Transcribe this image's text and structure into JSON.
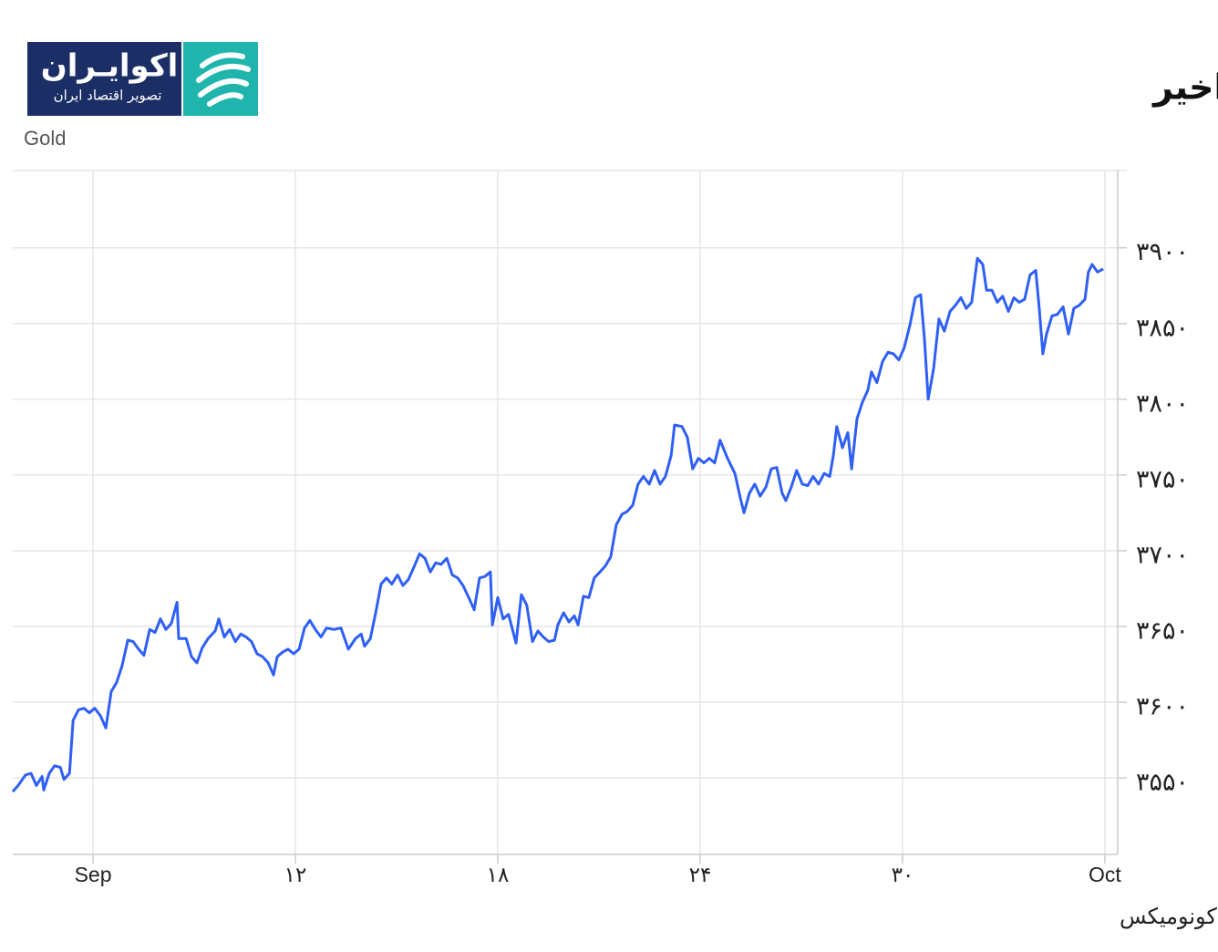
{
  "logo": {
    "name": "اکوایـران",
    "tagline": "تصویر اقتصاد ایران"
  },
  "chart_data": {
    "type": "line",
    "title": "روند طلای جهانی در یک ماه اخیر",
    "ylabel": "Gold",
    "source": "منبع: تریدینگ اکونومیکس",
    "grid": true,
    "xlim": [
      -2.38,
      30.38
    ],
    "xticks": [
      {
        "value": 0,
        "label": "Sep"
      },
      {
        "value": 6,
        "label": "۱۲"
      },
      {
        "value": 12,
        "label": "۱۸"
      },
      {
        "value": 18,
        "label": "۲۴"
      },
      {
        "value": 24,
        "label": "۳۰"
      },
      {
        "value": 30,
        "label": "Oct"
      }
    ],
    "ylim": [
      3499.5,
      3951
    ],
    "yticks": [
      {
        "value": 3550,
        "label": "۳۵۵۰"
      },
      {
        "value": 3600,
        "label": "۳۶۰۰"
      },
      {
        "value": 3650,
        "label": "۳۶۵۰"
      },
      {
        "value": 3700,
        "label": "۳۷۰۰"
      },
      {
        "value": 3750,
        "label": "۳۷۵۰"
      },
      {
        "value": 3800,
        "label": "۳۸۰۰"
      },
      {
        "value": 3850,
        "label": "۳۸۵۰"
      },
      {
        "value": 3900,
        "label": "۳۹۰۰"
      }
    ],
    "x": [
      -2.38,
      -2.22,
      -2.0,
      -1.84,
      -1.68,
      -1.51,
      -1.46,
      -1.3,
      -1.14,
      -0.97,
      -0.86,
      -0.7,
      -0.59,
      -0.43,
      -0.27,
      -0.11,
      0.05,
      0.22,
      0.38,
      0.54,
      0.7,
      0.86,
      1.03,
      1.19,
      1.35,
      1.51,
      1.68,
      1.84,
      2.0,
      2.16,
      2.32,
      2.49,
      2.54,
      2.76,
      2.92,
      3.08,
      3.24,
      3.41,
      3.62,
      3.73,
      3.89,
      4.05,
      4.22,
      4.38,
      4.54,
      4.7,
      4.86,
      5.03,
      5.19,
      5.35,
      5.46,
      5.62,
      5.78,
      5.95,
      6.11,
      6.27,
      6.43,
      6.59,
      6.76,
      6.92,
      7.14,
      7.35,
      7.57,
      7.78,
      7.95,
      8.05,
      8.22,
      8.38,
      8.54,
      8.7,
      8.86,
      9.03,
      9.19,
      9.35,
      9.51,
      9.68,
      9.84,
      10.0,
      10.16,
      10.32,
      10.49,
      10.65,
      10.81,
      10.97,
      11.14,
      11.3,
      11.46,
      11.62,
      11.78,
      11.84,
      12.0,
      12.16,
      12.32,
      12.54,
      12.7,
      12.86,
      13.03,
      13.19,
      13.35,
      13.51,
      13.68,
      13.78,
      13.95,
      14.11,
      14.27,
      14.38,
      14.54,
      14.7,
      14.86,
      15.03,
      15.19,
      15.35,
      15.51,
      15.68,
      15.84,
      16.0,
      16.16,
      16.32,
      16.49,
      16.65,
      16.81,
      16.97,
      17.14,
      17.24,
      17.46,
      17.62,
      17.78,
      17.95,
      18.11,
      18.27,
      18.43,
      18.59,
      18.81,
      19.03,
      19.19,
      19.3,
      19.46,
      19.62,
      19.78,
      19.95,
      20.11,
      20.27,
      20.43,
      20.54,
      20.7,
      20.86,
      21.03,
      21.19,
      21.35,
      21.51,
      21.68,
      21.84,
      21.95,
      22.05,
      22.22,
      22.38,
      22.49,
      22.65,
      22.81,
      22.97,
      23.08,
      23.24,
      23.41,
      23.57,
      23.73,
      23.89,
      24.05,
      24.22,
      24.38,
      24.54,
      24.65,
      24.76,
      24.92,
      25.08,
      25.24,
      25.41,
      25.57,
      25.73,
      25.89,
      26.05,
      26.22,
      26.38,
      26.49,
      26.65,
      26.81,
      26.97,
      27.14,
      27.3,
      27.46,
      27.62,
      27.78,
      27.95,
      28.05,
      28.16,
      28.27,
      28.43,
      28.59,
      28.76,
      28.92,
      29.08,
      29.24,
      29.41,
      29.51,
      29.62,
      29.78,
      29.95
    ],
    "series": [
      {
        "color": "#2f5ff5",
        "values": [
          3541,
          3545,
          3552,
          3553,
          3545,
          3551,
          3542,
          3553,
          3558,
          3557,
          3549,
          3553,
          3588,
          3595,
          3596,
          3593,
          3596,
          3591,
          3583,
          3607,
          3613,
          3624,
          3641,
          3640,
          3635,
          3631,
          3648,
          3646,
          3655,
          3648,
          3652,
          3666,
          3642,
          3642,
          3630,
          3626,
          3636,
          3642,
          3647,
          3655,
          3643,
          3648,
          3640,
          3645,
          3643,
          3640,
          3632,
          3630,
          3626,
          3618,
          3630,
          3633,
          3635,
          3632,
          3635,
          3649,
          3654,
          3648,
          3643,
          3649,
          3648,
          3649,
          3635,
          3642,
          3645,
          3637,
          3642,
          3659,
          3678,
          3682,
          3678,
          3684,
          3677,
          3681,
          3689,
          3698,
          3695,
          3686,
          3692,
          3691,
          3695,
          3684,
          3682,
          3677,
          3669,
          3661,
          3682,
          3683,
          3686,
          3651,
          3669,
          3655,
          3658,
          3639,
          3671,
          3664,
          3640,
          3647,
          3643,
          3640,
          3641,
          3651,
          3659,
          3653,
          3657,
          3651,
          3670,
          3669,
          3682,
          3686,
          3690,
          3696,
          3717,
          3724,
          3726,
          3730,
          3744,
          3749,
          3744,
          3753,
          3744,
          3749,
          3763,
          3783,
          3782,
          3775,
          3754,
          3761,
          3758,
          3761,
          3758,
          3773,
          3761,
          3751,
          3735,
          3725,
          3738,
          3744,
          3736,
          3742,
          3754,
          3755,
          3738,
          3733,
          3742,
          3753,
          3744,
          3743,
          3749,
          3744,
          3751,
          3749,
          3763,
          3782,
          3768,
          3778,
          3754,
          3787,
          3798,
          3806,
          3818,
          3811,
          3825,
          3831,
          3830,
          3826,
          3834,
          3849,
          3867,
          3869,
          3840,
          3800,
          3820,
          3853,
          3845,
          3858,
          3862,
          3867,
          3860,
          3864,
          3893,
          3889,
          3872,
          3872,
          3864,
          3868,
          3858,
          3867,
          3864,
          3866,
          3882,
          3885,
          3861,
          3830,
          3843,
          3855,
          3856,
          3861,
          3843,
          3860,
          3862,
          3866,
          3884,
          3889,
          3884,
          3886
        ]
      }
    ]
  }
}
